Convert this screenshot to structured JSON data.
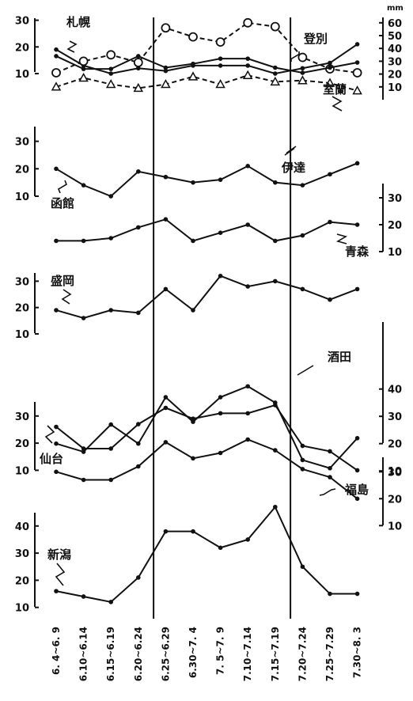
{
  "chart_data": {
    "type": "line",
    "unit_label": "mm",
    "categories": [
      "6. 4~6. 9",
      "6.10~6.14",
      "6.15~6.19",
      "6.20~6.24",
      "6.25~6.29",
      "6.30~7. 4",
      "7. 5~7. 9",
      "7.10~7.14",
      "7.15~7.19",
      "7.20~7.24",
      "7.25~7.29",
      "7.30~8. 3"
    ],
    "series": [
      {
        "name": "札幌",
        "style": "filled",
        "axis": 0,
        "values": [
          19,
          13,
          10,
          12,
          11,
          13,
          13,
          13,
          10,
          12,
          14,
          21
        ]
      },
      {
        "name": "登別",
        "style": "hollow-circle",
        "axis": 1,
        "values": [
          21,
          30,
          35,
          29,
          56,
          49,
          45,
          60,
          57,
          33,
          24,
          21
        ]
      },
      {
        "name": "室蘭",
        "style": "filled",
        "axis": 1,
        "values": [
          34,
          24,
          24,
          34,
          25,
          28,
          32,
          32,
          25,
          21,
          25,
          29
        ]
      },
      {
        "name": "伊達",
        "style": "hollow-triangle",
        "axis": 1,
        "values": [
          10,
          17,
          12,
          9,
          12,
          18,
          12,
          19,
          14,
          15,
          13,
          7
        ]
      },
      {
        "name": "函館",
        "style": "filled",
        "axis": 2,
        "values": [
          20,
          14,
          10,
          19,
          17,
          15,
          16,
          21,
          15,
          14,
          18,
          22
        ]
      },
      {
        "name": "青森",
        "style": "filled",
        "axis": 3,
        "values": [
          14,
          14,
          15,
          19,
          22,
          14,
          17,
          20,
          14,
          16,
          21,
          20
        ]
      },
      {
        "name": "盛岡",
        "style": "filled",
        "axis": 4,
        "values": [
          19,
          16,
          19,
          18,
          27,
          19,
          32,
          28,
          30,
          27,
          23,
          27
        ]
      },
      {
        "name": "酒田",
        "style": "filled",
        "axis": 5,
        "values": [
          20,
          17,
          27,
          20,
          37,
          28,
          37,
          41,
          35,
          14,
          11,
          22
        ]
      },
      {
        "name": "仙台",
        "style": "filled",
        "axis": 6,
        "values": [
          26,
          18,
          18,
          27,
          33,
          29,
          31,
          31,
          34,
          19,
          17,
          10
        ]
      },
      {
        "name": "福島",
        "style": "filled",
        "axis": 7,
        "values": [
          30,
          27,
          27,
          32,
          41,
          35,
          37,
          42,
          38,
          31,
          28,
          20
        ]
      },
      {
        "name": "新潟",
        "style": "filled",
        "axis": 8,
        "values": [
          16,
          14,
          12,
          21,
          38,
          38,
          32,
          35,
          47,
          25,
          15,
          15
        ]
      }
    ],
    "axes": [
      {
        "ticks": [
          10,
          20,
          30
        ],
        "side": "left"
      },
      {
        "ticks": [
          10,
          20,
          30,
          40,
          50,
          60
        ],
        "side": "right"
      },
      {
        "ticks": [
          10,
          20,
          30
        ],
        "side": "left"
      },
      {
        "ticks": [
          10,
          20,
          30
        ],
        "side": "right"
      },
      {
        "ticks": [
          10,
          20,
          30
        ],
        "side": "left"
      },
      {
        "ticks": [
          10,
          20,
          30,
          40
        ],
        "side": "right"
      },
      {
        "ticks": [
          10,
          20,
          30
        ],
        "side": "left"
      },
      {
        "ticks": [
          10,
          20,
          30
        ],
        "side": "right"
      },
      {
        "ticks": [
          10,
          20,
          30,
          40
        ],
        "side": "left"
      }
    ],
    "reference_lines_after_category": [
      "6.20~6.24",
      "7.15~7.19"
    ],
    "grid": false,
    "legend": "inline station labels"
  }
}
